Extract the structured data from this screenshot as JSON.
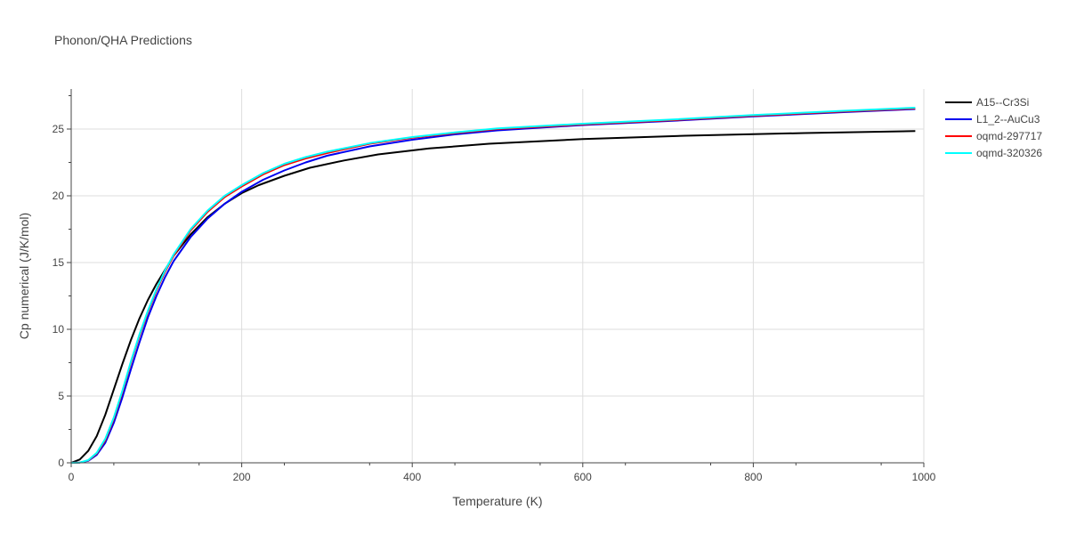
{
  "chart_data": {
    "type": "line",
    "title": "Phonon/QHA Predictions",
    "xlabel": "Temperature (K)",
    "ylabel": "Cp numerical (J/K/mol)",
    "xlim": [
      0,
      1000
    ],
    "ylim": [
      0,
      28
    ],
    "xticks": [
      0,
      200,
      400,
      600,
      800,
      1000
    ],
    "yticks": [
      0,
      5,
      10,
      15,
      20,
      25
    ],
    "grid": true,
    "legend_position": "top-right",
    "series": [
      {
        "name": "A15--Cr3Si",
        "color": "#000000",
        "x": [
          0,
          10,
          20,
          30,
          40,
          50,
          60,
          70,
          80,
          90,
          100,
          120,
          140,
          160,
          180,
          200,
          220,
          250,
          280,
          320,
          360,
          420,
          490,
          600,
          720,
          860,
          990
        ],
        "y": [
          0,
          0.25,
          0.9,
          2.0,
          3.6,
          5.5,
          7.4,
          9.2,
          10.8,
          12.2,
          13.4,
          15.5,
          17.1,
          18.4,
          19.4,
          20.2,
          20.8,
          21.5,
          22.1,
          22.65,
          23.1,
          23.55,
          23.9,
          24.25,
          24.5,
          24.7,
          24.85
        ]
      },
      {
        "name": "L1_2--AuCu3",
        "color": "#0000ee",
        "x": [
          0,
          10,
          20,
          30,
          40,
          50,
          60,
          70,
          80,
          90,
          100,
          110,
          120,
          140,
          160,
          180,
          200,
          225,
          250,
          275,
          300,
          350,
          400,
          450,
          500,
          600,
          700,
          800,
          900,
          990
        ],
        "y": [
          0,
          0.02,
          0.15,
          0.6,
          1.5,
          3.0,
          4.9,
          7.0,
          9.0,
          10.9,
          12.5,
          13.9,
          15.1,
          16.9,
          18.3,
          19.4,
          20.3,
          21.2,
          21.9,
          22.5,
          23.0,
          23.7,
          24.2,
          24.6,
          24.9,
          25.3,
          25.6,
          25.95,
          26.25,
          26.5
        ]
      },
      {
        "name": "oqmd-297717",
        "color": "#ff0000",
        "x": [
          0,
          10,
          20,
          30,
          40,
          50,
          60,
          70,
          80,
          90,
          100,
          110,
          120,
          140,
          160,
          180,
          200,
          225,
          250,
          275,
          300,
          350,
          400,
          450,
          500,
          600,
          700,
          800,
          900,
          990
        ],
        "y": [
          0,
          0.02,
          0.18,
          0.7,
          1.7,
          3.3,
          5.3,
          7.5,
          9.5,
          11.3,
          12.9,
          14.3,
          15.5,
          17.4,
          18.8,
          19.9,
          20.7,
          21.6,
          22.3,
          22.8,
          23.2,
          23.9,
          24.35,
          24.7,
          25.0,
          25.35,
          25.65,
          26.0,
          26.3,
          26.55
        ]
      },
      {
        "name": "oqmd-320326",
        "color": "#00ffff",
        "x": [
          0,
          10,
          20,
          30,
          40,
          50,
          60,
          70,
          80,
          90,
          100,
          110,
          120,
          140,
          160,
          180,
          200,
          225,
          250,
          275,
          300,
          350,
          400,
          450,
          500,
          600,
          700,
          800,
          900,
          990
        ],
        "y": [
          0,
          0.02,
          0.2,
          0.75,
          1.8,
          3.4,
          5.4,
          7.6,
          9.6,
          11.4,
          13.0,
          14.4,
          15.6,
          17.5,
          18.9,
          20.0,
          20.8,
          21.7,
          22.4,
          22.9,
          23.3,
          23.95,
          24.4,
          24.75,
          25.05,
          25.4,
          25.7,
          26.05,
          26.35,
          26.6
        ]
      }
    ]
  }
}
